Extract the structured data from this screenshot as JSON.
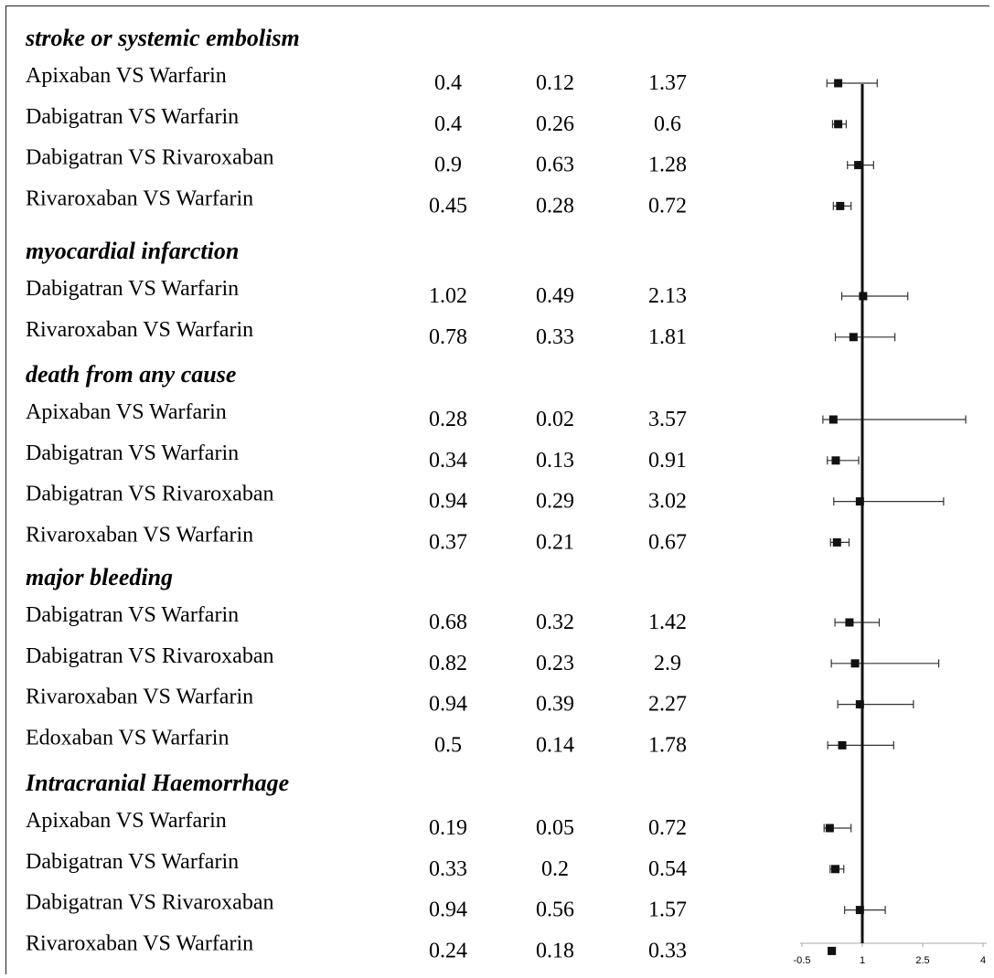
{
  "chart_data": {
    "type": "forest",
    "x_ticks": [
      -0.5,
      1,
      2.5,
      4
    ],
    "xlim": [
      -0.5,
      4
    ],
    "reference_line": 1,
    "groups": [
      {
        "title": "stroke or systemic embolism",
        "rows": [
          {
            "label": "Apixaban VS Warfarin",
            "est": 0.4,
            "lo": 0.12,
            "hi": 1.37
          },
          {
            "label": "Dabigatran VS Warfarin",
            "est": 0.4,
            "lo": 0.26,
            "hi": 0.6
          },
          {
            "label": "Dabigatran VS Rivaroxaban",
            "est": 0.9,
            "lo": 0.63,
            "hi": 1.28
          },
          {
            "label": "Rivaroxaban VS Warfarin",
            "est": 0.45,
            "lo": 0.28,
            "hi": 0.72
          }
        ]
      },
      {
        "title": "myocardial infarction",
        "rows": [
          {
            "label": "Dabigatran VS Warfarin",
            "est": 1.02,
            "lo": 0.49,
            "hi": 2.13
          },
          {
            "label": "Rivaroxaban VS Warfarin",
            "est": 0.78,
            "lo": 0.33,
            "hi": 1.81
          }
        ]
      },
      {
        "title": "death from any cause",
        "rows": [
          {
            "label": "Apixaban VS Warfarin",
            "est": 0.28,
            "lo": 0.02,
            "hi": 3.57
          },
          {
            "label": "Dabigatran VS Warfarin",
            "est": 0.34,
            "lo": 0.13,
            "hi": 0.91
          },
          {
            "label": "Dabigatran VS Rivaroxaban",
            "est": 0.94,
            "lo": 0.29,
            "hi": 3.02
          },
          {
            "label": "Rivaroxaban VS Warfarin",
            "est": 0.37,
            "lo": 0.21,
            "hi": 0.67
          }
        ]
      },
      {
        "title": "major bleeding",
        "rows": [
          {
            "label": "Dabigatran VS Warfarin",
            "est": 0.68,
            "lo": 0.32,
            "hi": 1.42
          },
          {
            "label": "Dabigatran VS Rivaroxaban",
            "est": 0.82,
            "lo": 0.23,
            "hi": 2.9
          },
          {
            "label": "Rivaroxaban VS Warfarin",
            "est": 0.94,
            "lo": 0.39,
            "hi": 2.27
          },
          {
            "label": "Edoxaban VS Warfarin",
            "est": 0.5,
            "lo": 0.14,
            "hi": 1.78
          }
        ]
      },
      {
        "title": "Intracranial Haemorrhage",
        "rows": [
          {
            "label": "Apixaban VS Warfarin",
            "est": 0.19,
            "lo": 0.05,
            "hi": 0.72
          },
          {
            "label": "Dabigatran VS Warfarin",
            "est": 0.33,
            "lo": 0.2,
            "hi": 0.54
          },
          {
            "label": "Dabigatran VS Rivaroxaban",
            "est": 0.94,
            "lo": 0.56,
            "hi": 1.57
          },
          {
            "label": "Rivaroxaban VS Warfarin",
            "est": 0.24,
            "lo": 0.18,
            "hi": 0.33
          }
        ]
      }
    ]
  }
}
